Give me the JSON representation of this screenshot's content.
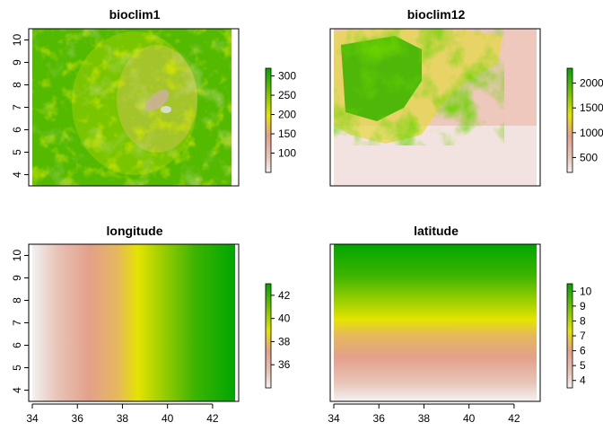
{
  "chart_data": [
    {
      "type": "heatmap",
      "title": "bioclim1",
      "xlabel": "",
      "ylabel": "",
      "xlim": [
        34,
        43
      ],
      "ylim": [
        3.5,
        10.5
      ],
      "y_ticks": [
        4,
        5,
        6,
        7,
        8,
        9,
        10
      ],
      "x_ticks": [],
      "legend": {
        "ticks": [
          "100",
          "150",
          "200",
          "250",
          "300"
        ],
        "range": [
          50,
          320
        ]
      },
      "field": "terrain-temperature"
    },
    {
      "type": "heatmap",
      "title": "bioclim12",
      "xlabel": "",
      "ylabel": "",
      "xlim": [
        34,
        43
      ],
      "ylim": [
        3.5,
        10.5
      ],
      "y_ticks": [],
      "x_ticks": [],
      "legend": {
        "ticks": [
          "500",
          "1000",
          "1500",
          "2000"
        ],
        "range": [
          200,
          2300
        ]
      },
      "field": "terrain-precipitation"
    },
    {
      "type": "heatmap",
      "title": "longitude",
      "xlabel": "",
      "ylabel": "",
      "xlim": [
        34,
        43
      ],
      "ylim": [
        3.5,
        10.5
      ],
      "y_ticks": [
        4,
        5,
        6,
        7,
        8,
        9,
        10
      ],
      "x_ticks": [
        34,
        36,
        38,
        40,
        42
      ],
      "legend": {
        "ticks": [
          "36",
          "38",
          "40",
          "42"
        ],
        "range": [
          34,
          43
        ]
      },
      "field": "gradient-x"
    },
    {
      "type": "heatmap",
      "title": "latitude",
      "xlabel": "",
      "ylabel": "",
      "xlim": [
        34,
        43
      ],
      "ylim": [
        3.5,
        10.5
      ],
      "y_ticks": [],
      "x_ticks": [
        34,
        36,
        38,
        40,
        42
      ],
      "legend": {
        "ticks": [
          "4",
          "5",
          "6",
          "7",
          "8",
          "9",
          "10"
        ],
        "range": [
          3.5,
          10.5
        ]
      },
      "field": "gradient-y"
    }
  ],
  "colors": {
    "ramp": [
      "#f2f2f2",
      "#e8c4b8",
      "#e3a08a",
      "#e6b85c",
      "#e4e400",
      "#9bcf00",
      "#3db400",
      "#00a600"
    ]
  }
}
